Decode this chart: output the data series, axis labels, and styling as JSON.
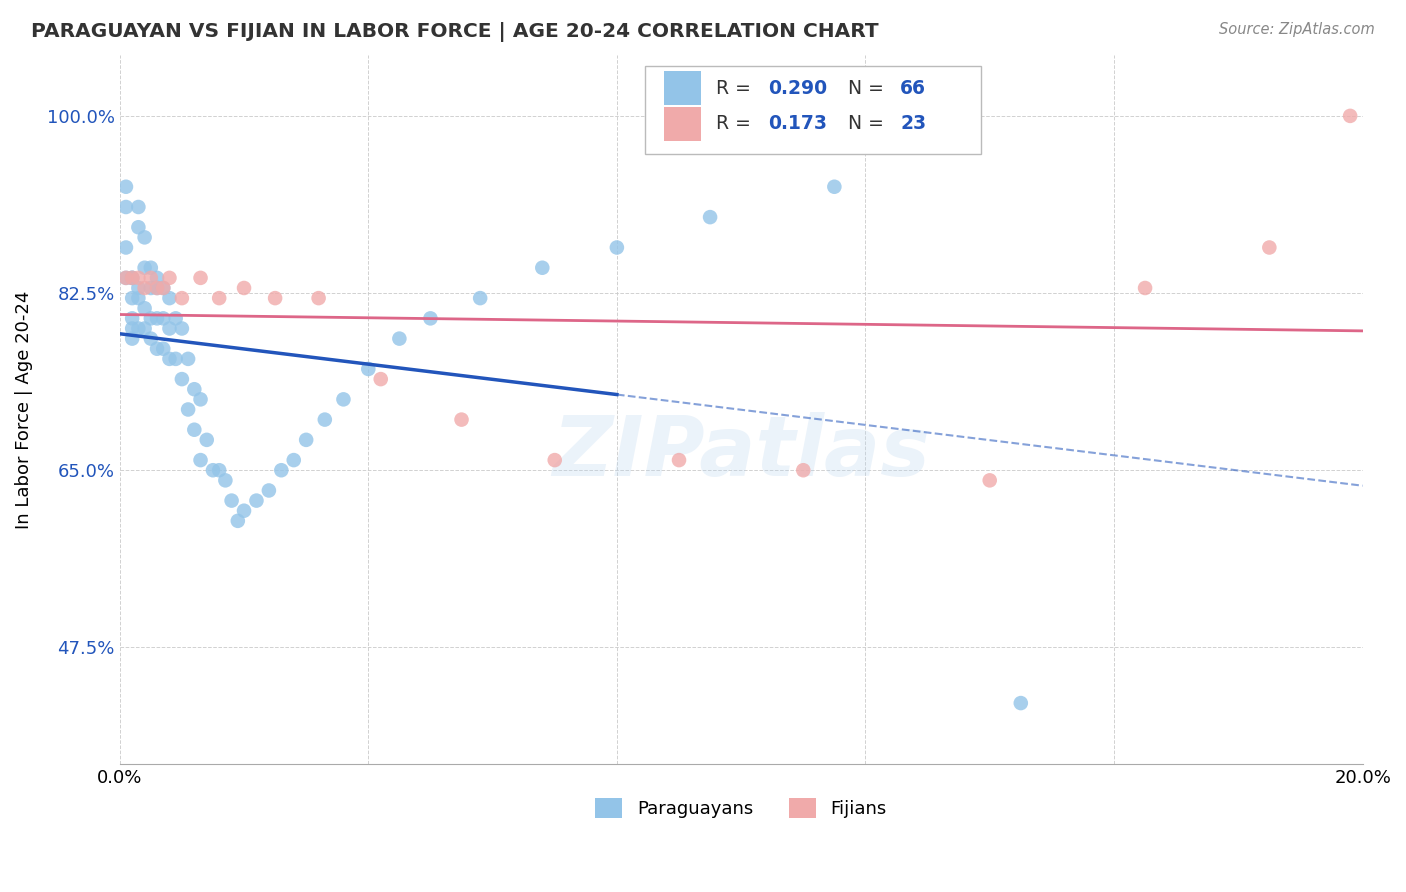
{
  "title": "PARAGUAYAN VS FIJIAN IN LABOR FORCE | AGE 20-24 CORRELATION CHART",
  "source": "Source: ZipAtlas.com",
  "ylabel": "In Labor Force | Age 20-24",
  "xmin": 0.0,
  "xmax": 0.2,
  "ymin": 0.36,
  "ymax": 1.06,
  "yticks": [
    0.475,
    0.65,
    0.825,
    1.0
  ],
  "ytick_labels": [
    "47.5%",
    "65.0%",
    "82.5%",
    "100.0%"
  ],
  "xticks": [
    0.0,
    0.04,
    0.08,
    0.12,
    0.16,
    0.2
  ],
  "xtick_labels": [
    "0.0%",
    "",
    "",
    "",
    "",
    "20.0%"
  ],
  "R_paraguayan": 0.29,
  "N_paraguayan": 66,
  "R_fijian": 0.173,
  "N_fijian": 23,
  "blue_color": "#93c4e8",
  "pink_color": "#f0aaaa",
  "blue_line_color": "#2255bb",
  "pink_line_color": "#dd6688",
  "watermark": "ZIPatlas",
  "background_color": "#ffffff",
  "grid_color": "#cccccc",
  "paraguayan_x": [
    0.001,
    0.001,
    0.001,
    0.001,
    0.002,
    0.002,
    0.002,
    0.002,
    0.002,
    0.002,
    0.003,
    0.003,
    0.003,
    0.003,
    0.003,
    0.004,
    0.004,
    0.004,
    0.004,
    0.005,
    0.005,
    0.005,
    0.005,
    0.006,
    0.006,
    0.006,
    0.006,
    0.007,
    0.007,
    0.007,
    0.008,
    0.008,
    0.008,
    0.009,
    0.009,
    0.01,
    0.01,
    0.011,
    0.011,
    0.012,
    0.012,
    0.013,
    0.013,
    0.014,
    0.015,
    0.016,
    0.017,
    0.018,
    0.019,
    0.02,
    0.022,
    0.024,
    0.026,
    0.028,
    0.03,
    0.033,
    0.036,
    0.04,
    0.045,
    0.05,
    0.058,
    0.068,
    0.08,
    0.095,
    0.115,
    0.145
  ],
  "paraguayan_y": [
    0.84,
    0.93,
    0.91,
    0.87,
    0.84,
    0.84,
    0.82,
    0.8,
    0.79,
    0.78,
    0.91,
    0.89,
    0.83,
    0.82,
    0.79,
    0.88,
    0.85,
    0.81,
    0.79,
    0.85,
    0.83,
    0.8,
    0.78,
    0.84,
    0.83,
    0.8,
    0.77,
    0.83,
    0.8,
    0.77,
    0.82,
    0.79,
    0.76,
    0.8,
    0.76,
    0.79,
    0.74,
    0.76,
    0.71,
    0.73,
    0.69,
    0.72,
    0.66,
    0.68,
    0.65,
    0.65,
    0.64,
    0.62,
    0.6,
    0.61,
    0.62,
    0.63,
    0.65,
    0.66,
    0.68,
    0.7,
    0.72,
    0.75,
    0.78,
    0.8,
    0.82,
    0.85,
    0.87,
    0.9,
    0.93,
    0.42
  ],
  "fijian_x": [
    0.001,
    0.002,
    0.003,
    0.004,
    0.005,
    0.006,
    0.007,
    0.008,
    0.01,
    0.013,
    0.016,
    0.02,
    0.025,
    0.032,
    0.042,
    0.055,
    0.07,
    0.09,
    0.11,
    0.14,
    0.165,
    0.185,
    0.198
  ],
  "fijian_y": [
    0.84,
    0.84,
    0.84,
    0.83,
    0.84,
    0.83,
    0.83,
    0.84,
    0.82,
    0.84,
    0.82,
    0.83,
    0.82,
    0.82,
    0.74,
    0.7,
    0.66,
    0.66,
    0.65,
    0.64,
    0.83,
    0.87,
    1.0
  ]
}
